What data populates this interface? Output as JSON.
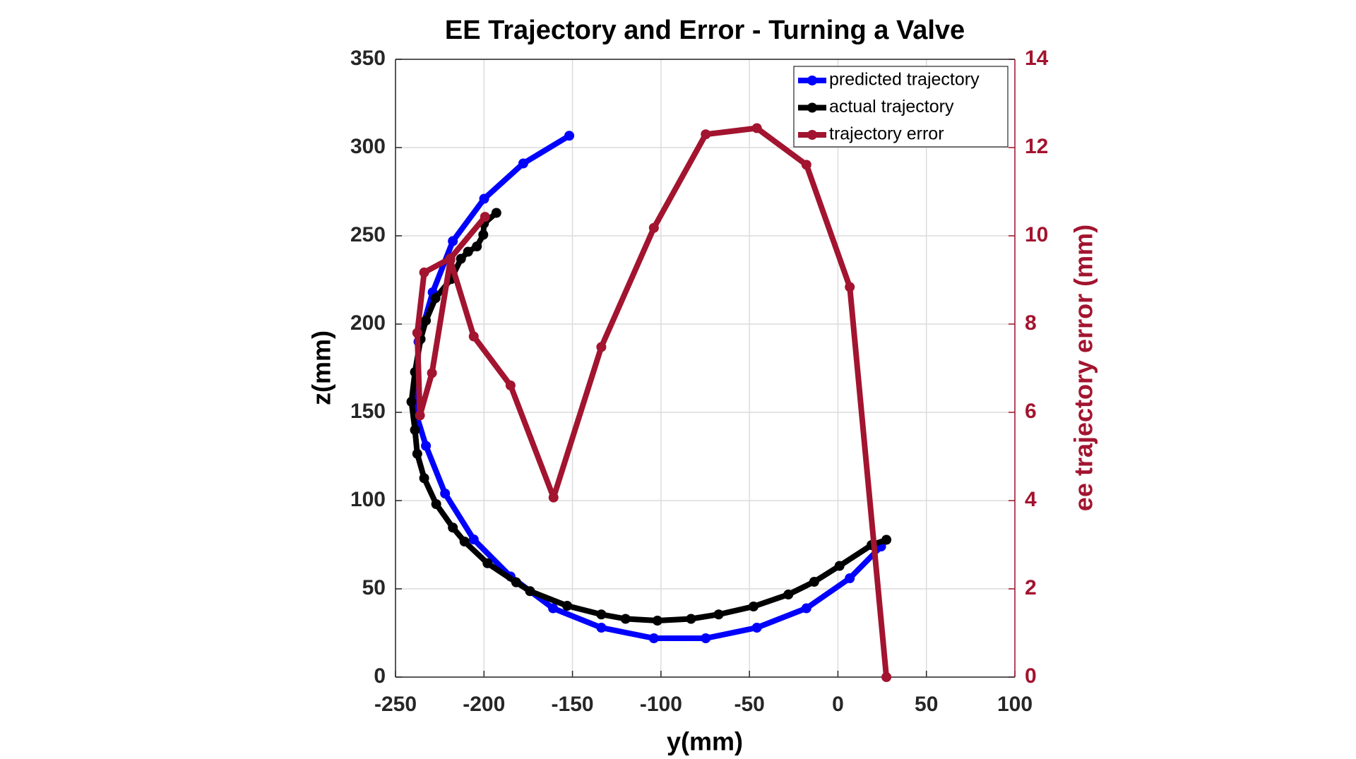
{
  "chart_data": {
    "type": "line",
    "title": "EE Trajectory and Error - Turning a Valve",
    "x_label": "y(mm)",
    "y_label": "z(mm)",
    "y2_label": "ee trajectory error (mm)",
    "xlim": [
      -250,
      100
    ],
    "xticks": [
      -250,
      -200,
      -150,
      -100,
      -50,
      0,
      50,
      100
    ],
    "ylim": [
      0,
      350
    ],
    "yticks": [
      0,
      50,
      100,
      150,
      200,
      250,
      300,
      350
    ],
    "y2lim": [
      0,
      14
    ],
    "y2ticks": [
      0,
      2,
      4,
      6,
      8,
      10,
      12,
      14
    ],
    "y2color": "#a2142f",
    "grid": true,
    "legend": "top-right",
    "series": [
      {
        "name": "predicted trajectory",
        "color": "#0000ff",
        "x": [
          -151.8,
          -177.8,
          -199.9,
          -217.6,
          -229,
          -237,
          -238,
          -232.8,
          -222,
          -205.8,
          -185,
          -161,
          -133.7,
          -104,
          -74.7,
          -45.8,
          -17.8,
          6.7,
          24.4
        ],
        "values": [
          306.7,
          291,
          271,
          247,
          218,
          190,
          148,
          131,
          104,
          78,
          57,
          39,
          28,
          22,
          22,
          28,
          39,
          56,
          74
        ]
      },
      {
        "name": "actual trajectory",
        "color": "#000000",
        "x": [
          -193,
          -200,
          -200.4,
          -204,
          -209,
          -213,
          -218.6,
          -227.4,
          -232.8,
          -235.8,
          -239,
          -241,
          -239,
          -237.7,
          -233.8,
          -227,
          -217.6,
          -211,
          -198,
          -181.8,
          -174,
          -153,
          -133.7,
          -120,
          -102,
          -83,
          -67.4,
          -47.7,
          -28,
          -13.4,
          0.9,
          19,
          27.4
        ],
        "values": [
          263,
          257,
          250.6,
          244,
          241,
          237,
          225.5,
          214.7,
          202,
          191.5,
          172.8,
          156,
          140,
          126.5,
          112.7,
          98,
          84.7,
          76.8,
          64.5,
          53.7,
          48.7,
          40.4,
          35.5,
          33,
          32,
          33,
          35.5,
          40,
          46.8,
          54,
          63,
          74.8,
          77.8
        ]
      },
      {
        "name": "trajectory error",
        "color": "#a2142f",
        "axis": "y2",
        "x": [
          -199.4,
          -219,
          -233.8,
          -237.7,
          -236.2,
          -229.4,
          -219,
          -205.8,
          -185,
          -160.7,
          -133.7,
          -104,
          -74.7,
          -45.8,
          -17.8,
          6.7,
          27.4
        ],
        "values": [
          10.43,
          9.49,
          9.17,
          7.8,
          5.93,
          6.89,
          9.45,
          7.72,
          6.61,
          4.07,
          7.48,
          10.18,
          12.3,
          12.44,
          11.61,
          8.84,
          0
        ]
      }
    ]
  }
}
